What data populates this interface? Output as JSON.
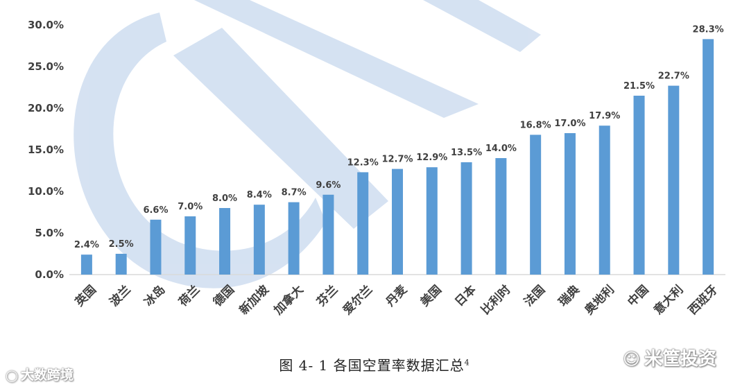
{
  "chart_data": {
    "type": "bar",
    "categories": [
      "英国",
      "波兰",
      "冰岛",
      "荷兰",
      "德国",
      "新加坡",
      "加拿大",
      "芬兰",
      "爱尔兰",
      "丹麦",
      "美国",
      "日本",
      "比利时",
      "法国",
      "瑞典",
      "奥地利",
      "中国",
      "意大利",
      "西班牙"
    ],
    "values": [
      2.4,
      2.5,
      6.6,
      7.0,
      8.0,
      8.4,
      8.7,
      9.6,
      12.3,
      12.7,
      12.9,
      13.5,
      14.0,
      16.8,
      17.0,
      17.9,
      21.5,
      22.7,
      28.3
    ],
    "value_labels": [
      "2.4%",
      "2.5%",
      "6.6%",
      "7.0%",
      "8.0%",
      "8.4%",
      "8.7%",
      "9.6%",
      "12.3%",
      "12.7%",
      "12.9%",
      "13.5%",
      "14.0%",
      "16.8%",
      "17.0%",
      "17.9%",
      "21.5%",
      "22.7%",
      "28.3%"
    ],
    "y_ticks": [
      "0.0%",
      "5.0%",
      "10.0%",
      "15.0%",
      "20.0%",
      "25.0%",
      "30.0%"
    ],
    "y_tick_values": [
      0,
      5,
      10,
      15,
      20,
      25,
      30
    ],
    "ylim": [
      0,
      30
    ],
    "grid": false,
    "bar_color": "#5B9BD5"
  },
  "caption": {
    "text": "图 4- 1 各国空置率数据汇总",
    "superscript": "4"
  },
  "watermarks": {
    "left": "大数跨境",
    "left_icon": "logo-icon",
    "right": "米筐投资",
    "right_icon": "wechat-icon"
  }
}
